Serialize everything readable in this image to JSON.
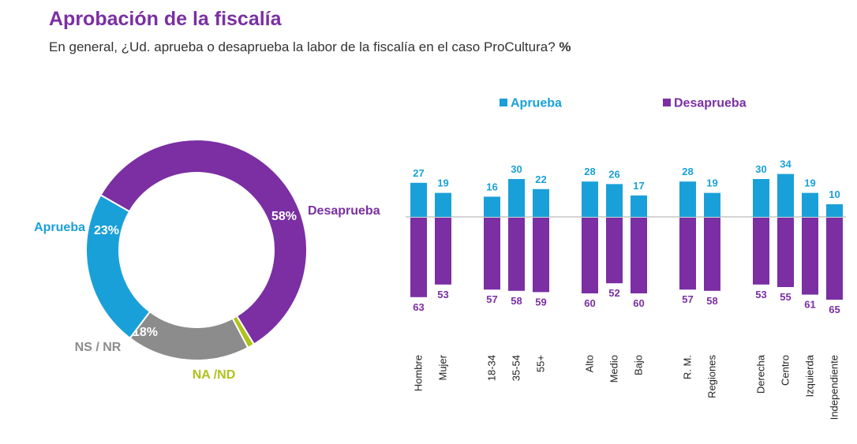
{
  "title": "Aprobación de la fiscalía",
  "subtitle": "En general, ¿Ud. aprueba o desaprueba la labor de la fiscalía en el caso ProCultura?",
  "subtitle_unit": "%",
  "colors": {
    "aprueba": "#1AA0D8",
    "desaprueba": "#7B2FA3",
    "nsnr": "#8C8C8C",
    "nand": "#AFC11B"
  },
  "chart_data": [
    {
      "type": "pie",
      "slices": [
        {
          "name": "Desaprueba",
          "value": 58,
          "label": "58%",
          "color": "#7B2FA3"
        },
        {
          "name": "NA /ND",
          "value": 1,
          "label": "1%",
          "color": "#AFC11B"
        },
        {
          "name": "NS / NR",
          "value": 18,
          "label": "18%",
          "color": "#8C8C8C"
        },
        {
          "name": "Aprueba",
          "value": 23,
          "label": "23%",
          "color": "#1AA0D8"
        }
      ]
    },
    {
      "type": "bar",
      "legend": [
        "Aprueba",
        "Desaprueba"
      ],
      "categories": [
        "Hombre",
        "Mujer",
        "18-34",
        "35-54",
        "55+",
        "Alto",
        "Medio",
        "Bajo",
        "R. M.",
        "Regiones",
        "Derecha",
        "Centro",
        "Izquierda",
        "Independiente"
      ],
      "groups": [
        2,
        3,
        3,
        2,
        4
      ],
      "series": [
        {
          "name": "Aprueba",
          "values": [
            27,
            19,
            16,
            30,
            22,
            28,
            26,
            17,
            28,
            19,
            30,
            34,
            19,
            10
          ]
        },
        {
          "name": "Desaprueba",
          "values": [
            63,
            53,
            57,
            58,
            59,
            60,
            52,
            60,
            57,
            58,
            53,
            55,
            61,
            65
          ]
        }
      ]
    }
  ]
}
